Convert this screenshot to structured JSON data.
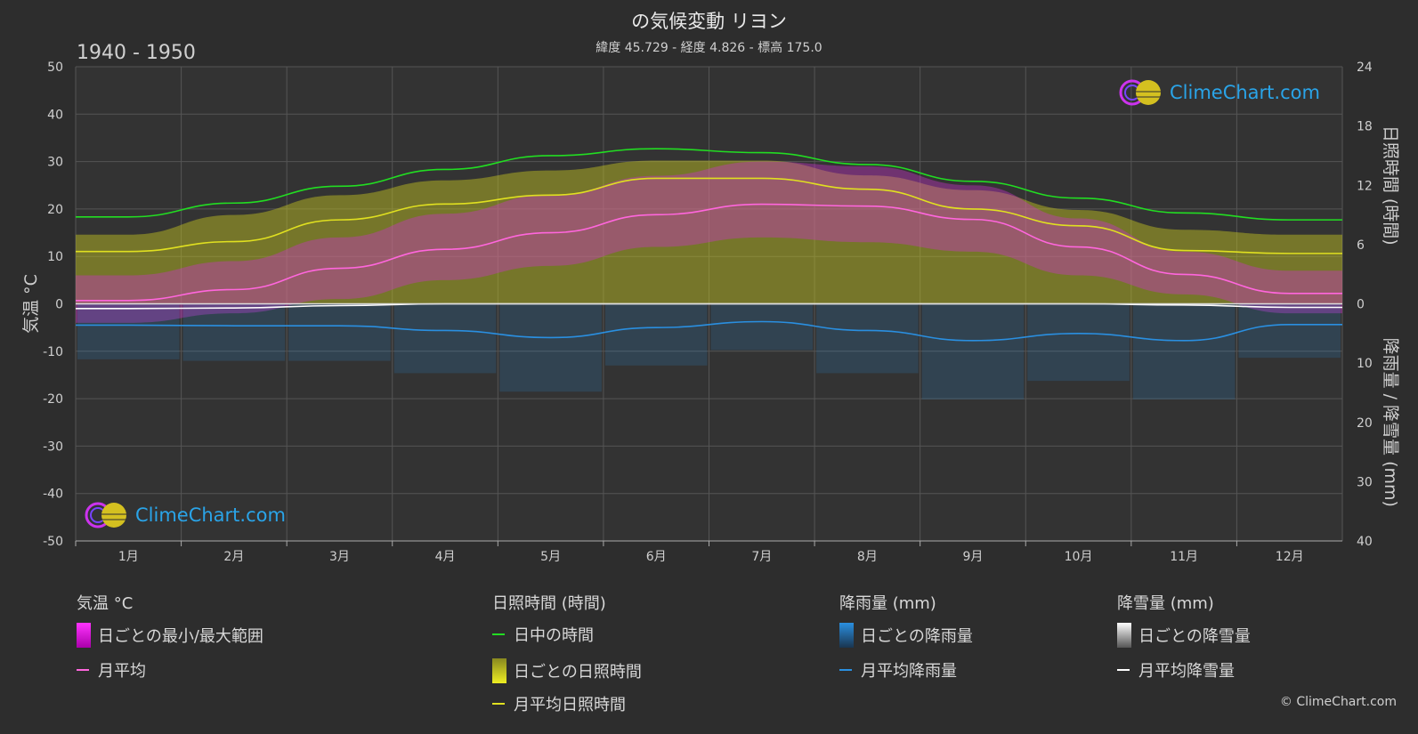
{
  "header": {
    "title": "の気候変動 リヨン",
    "subtitle": "緯度 45.729 - 経度 4.826 - 標高 175.0",
    "period": "1940 - 1950"
  },
  "brand": {
    "logo_text": "ClimeChart.com",
    "copyright": "© ClimeChart.com"
  },
  "chart_data": {
    "type": "line",
    "categories": [
      "1月",
      "2月",
      "3月",
      "4月",
      "5月",
      "6月",
      "7月",
      "8月",
      "9月",
      "10月",
      "11月",
      "12月"
    ],
    "y_left": {
      "label": "気温 °C",
      "range": [
        -50,
        50
      ],
      "ticks": [
        50,
        40,
        30,
        20,
        10,
        0,
        -10,
        -20,
        -30,
        -40,
        -50
      ]
    },
    "y_right_top": {
      "label": "日照時間 (時間)",
      "range": [
        0,
        24
      ],
      "ticks": [
        24,
        18,
        12,
        6,
        0
      ]
    },
    "y_right_bottom": {
      "label": "降雨量 / 降雪量 (mm)",
      "range": [
        0,
        40
      ],
      "ticks": [
        10,
        20,
        30,
        40
      ]
    },
    "series": [
      {
        "name": "日中の時間",
        "axis": "sunshine",
        "color": "#22dd22",
        "values": [
          8.8,
          10.2,
          11.9,
          13.6,
          15.0,
          15.7,
          15.3,
          14.1,
          12.4,
          10.7,
          9.2,
          8.5
        ]
      },
      {
        "name": "月平均日照時間",
        "axis": "sunshine",
        "color": "#e0e020",
        "values": [
          5.3,
          6.3,
          8.5,
          10.1,
          11.0,
          12.7,
          12.7,
          11.6,
          9.6,
          7.9,
          5.4,
          5.1
        ]
      },
      {
        "name": "月平均",
        "axis": "temperature",
        "color": "#ff66dd",
        "values": [
          0.7,
          3.0,
          7.5,
          11.5,
          15.0,
          18.8,
          21.0,
          20.6,
          17.8,
          12.0,
          6.2,
          2.2
        ]
      },
      {
        "name": "月平均降雨量",
        "axis": "precipitation",
        "color": "#2a8fe0",
        "values": [
          3.6,
          3.7,
          3.7,
          4.5,
          5.7,
          4.0,
          3.0,
          4.5,
          6.2,
          5.0,
          6.2,
          3.5
        ]
      },
      {
        "name": "月平均降雪量",
        "axis": "precipitation",
        "color": "#ffffff",
        "values": [
          0.8,
          0.7,
          0.3,
          0.0,
          0.0,
          0.0,
          0.0,
          0.0,
          0.0,
          0.0,
          0.2,
          0.6
        ]
      }
    ],
    "temp_range_min": [
      -4,
      -2,
      1,
      5,
      8,
      12,
      14,
      13,
      11,
      6,
      2,
      -2
    ],
    "temp_range_max": [
      6,
      9,
      14,
      19,
      23,
      27,
      30,
      29,
      25,
      18,
      11,
      7
    ],
    "daily_sunshine_max": [
      7.0,
      9.0,
      11.0,
      12.5,
      13.5,
      14.5,
      14.5,
      13.0,
      11.5,
      9.5,
      7.5,
      7.0
    ],
    "grid": true
  },
  "legend": {
    "groups": [
      {
        "heading": "気温 °C",
        "items": [
          "日ごとの最小/最大範囲",
          "月平均"
        ]
      },
      {
        "heading": "日照時間 (時間)",
        "items": [
          "日中の時間",
          "日ごとの日照時間",
          "月平均日照時間"
        ]
      },
      {
        "heading": "降雨量 (mm)",
        "items": [
          "日ごとの降雨量",
          "月平均降雨量"
        ]
      },
      {
        "heading": "降雪量 (mm)",
        "items": [
          "日ごとの降雪量",
          "月平均降雪量"
        ]
      }
    ]
  },
  "colors": {
    "temp_range": "#cc33cc",
    "daylight": "#22dd22",
    "sunshine_band": "#c8c820",
    "sunshine_avg": "#e0e020",
    "rain": "#2a8fe0",
    "snow": "#ffffff",
    "grid": "#555555",
    "background": "#2d2d2d"
  }
}
